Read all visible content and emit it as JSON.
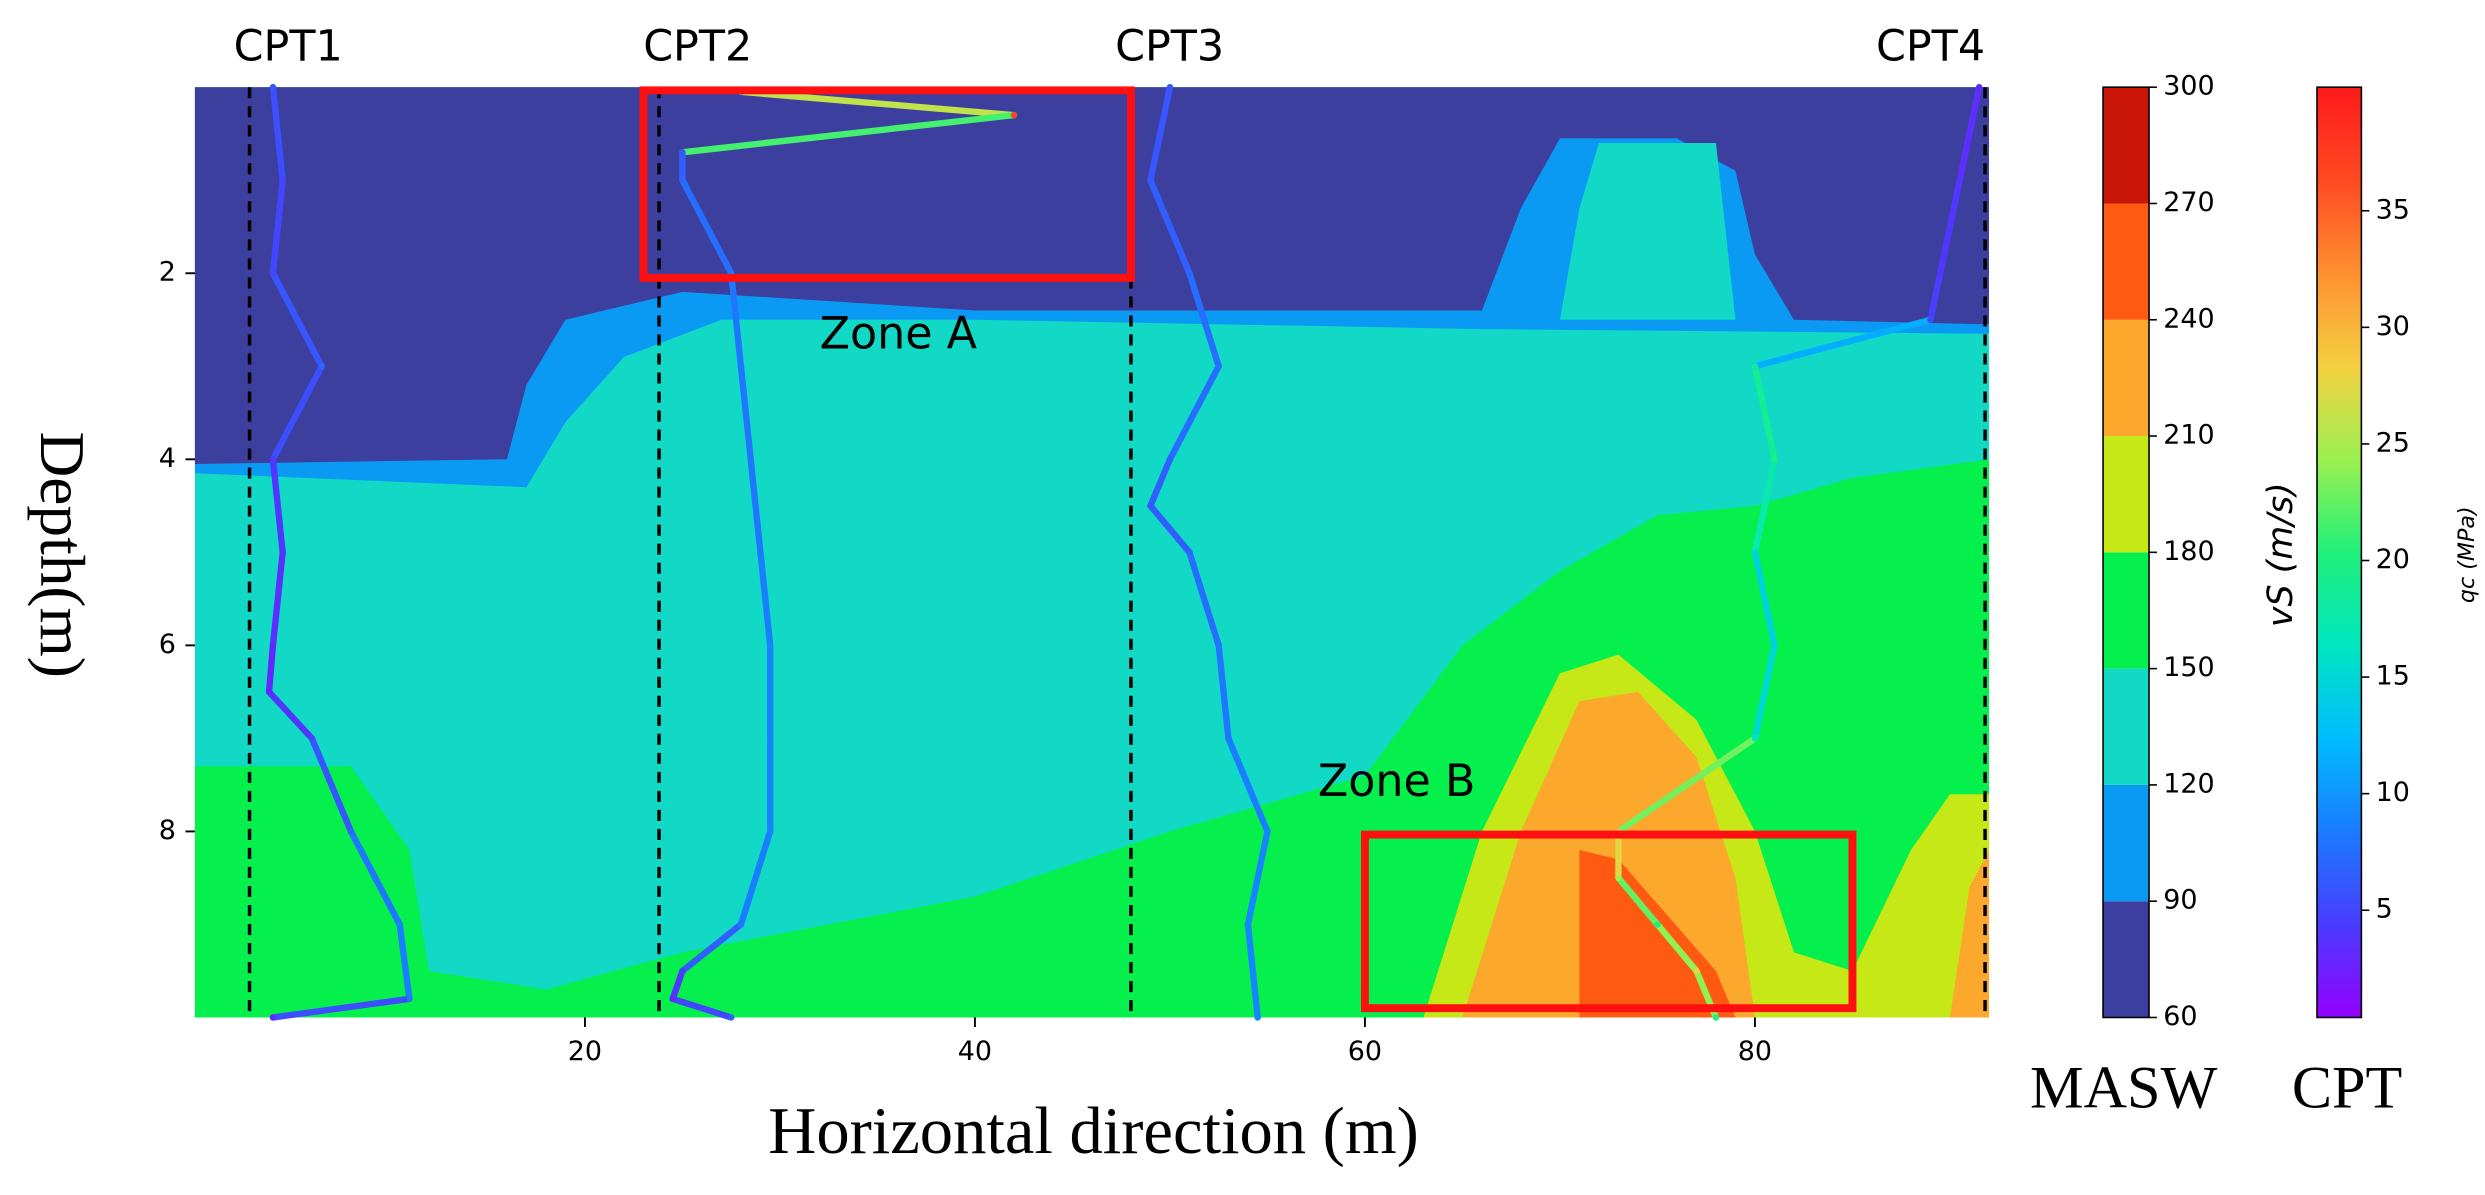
{
  "chart_data": {
    "type": "contour",
    "x_label": "Horizontal direction (m)",
    "y_label": "Depth(m)",
    "xlim": [
      0,
      92
    ],
    "ylim": [
      0,
      10
    ],
    "y_inverted": true,
    "xticks": [
      20,
      40,
      60,
      80
    ],
    "yticks": [
      2,
      4,
      6,
      8
    ],
    "masw": {
      "name": "MASW",
      "label": "vS (m/s)",
      "levels": [
        60,
        90,
        120,
        150,
        180,
        210,
        240,
        270,
        300
      ],
      "colors": [
        "#3c3f9e",
        "#0b9af3",
        "#12d8c6",
        "#05f04c",
        "#c6e817",
        "#fba82c",
        "#ff5a12",
        "#c81508"
      ]
    },
    "cpt_colorbar": {
      "name": "CPT",
      "label": "qc (MPa)",
      "lim": [
        0.4,
        40.3
      ],
      "ticks": [
        5,
        10,
        15,
        20,
        25,
        30,
        35
      ],
      "colors": [
        "#9400ff",
        "#4a3cff",
        "#1a7cff",
        "#00bcff",
        "#00e6c0",
        "#20f07a",
        "#9cf050",
        "#f4d040",
        "#ff9030",
        "#ff4a22",
        "#ff1a1a"
      ]
    },
    "background_level": 120,
    "regions": [
      {
        "level": 90,
        "x": [
          0,
          92,
          92,
          66,
          40,
          27,
          22,
          19,
          17,
          0
        ],
        "depth": [
          0,
          0,
          2.65,
          2.6,
          2.5,
          2.5,
          2.9,
          3.6,
          4.3,
          4.15
        ]
      },
      {
        "level": 60,
        "x": [
          0,
          92,
          92,
          82,
          80,
          79,
          76,
          70,
          68,
          66,
          40,
          25,
          19,
          17,
          16,
          0
        ],
        "depth": [
          0,
          0,
          2.55,
          2.5,
          1.8,
          0.9,
          0.55,
          0.55,
          1.3,
          2.4,
          2.4,
          2.2,
          2.5,
          3.2,
          4.0,
          4.05
        ]
      },
      {
        "level": 120,
        "x": [
          72,
          78,
          79,
          70,
          71
        ],
        "depth": [
          0.6,
          0.6,
          2.5,
          2.5,
          1.3
        ]
      },
      {
        "level": 150,
        "x": [
          0,
          0,
          8,
          11,
          12,
          18,
          25,
          40,
          50,
          60,
          65,
          70,
          75,
          80,
          85,
          92,
          92
        ],
        "depth": [
          10,
          7.3,
          7.3,
          8.2,
          9.5,
          9.7,
          9.3,
          8.7,
          8.0,
          7.4,
          6.0,
          5.2,
          4.6,
          4.5,
          4.2,
          4.0,
          10
        ]
      },
      {
        "level": 180,
        "x": [
          63,
          66,
          70,
          73,
          77,
          80,
          82,
          85,
          88,
          90,
          92,
          92
        ],
        "depth": [
          10,
          8.0,
          6.3,
          6.1,
          6.8,
          8.0,
          9.3,
          9.5,
          8.2,
          7.6,
          7.6,
          10
        ]
      },
      {
        "level": 210,
        "x": [
          65,
          68,
          71,
          74,
          77,
          79,
          80
        ],
        "depth": [
          10,
          8.0,
          6.6,
          6.5,
          7.2,
          8.5,
          10
        ]
      },
      {
        "level": 210,
        "x": [
          90,
          91,
          92,
          92
        ],
        "depth": [
          10,
          8.6,
          8.2,
          10
        ]
      },
      {
        "level": 240,
        "x": [
          71,
          71,
          73,
          78,
          79
        ],
        "depth": [
          10,
          8.2,
          8.3,
          9.5,
          10
        ]
      }
    ],
    "cpt_profiles": [
      {
        "name": "CPT1",
        "position": 2.8,
        "x": [
          4,
          4.5,
          4,
          6.5,
          4,
          4.5,
          4,
          3.8,
          6,
          8,
          10.5,
          11,
          4
        ],
        "depth": [
          0,
          1,
          2,
          3,
          4,
          5,
          6,
          6.5,
          7,
          8,
          9,
          9.8,
          10
        ],
        "qc": [
          6,
          5,
          5,
          7,
          4,
          4,
          3,
          3,
          5,
          7,
          9,
          8,
          3
        ]
      },
      {
        "name": "CPT2",
        "position": 23.8,
        "x": [
          28,
          42,
          25,
          25,
          27.5,
          28,
          28.5,
          29,
          29.5,
          29.5,
          29.5,
          28,
          25,
          24.5,
          27.5
        ],
        "depth": [
          0.05,
          0.3,
          0.7,
          1,
          2,
          3,
          4,
          5,
          6,
          7,
          8,
          9,
          9.5,
          9.8,
          10
        ],
        "qc": [
          15,
          37,
          6,
          7,
          8,
          8,
          8,
          8,
          9,
          9,
          9,
          8,
          5,
          3,
          7
        ]
      },
      {
        "name": "CPT3",
        "position": 48,
        "x": [
          50,
          49,
          51,
          52.5,
          50,
          49,
          51,
          52.5,
          53,
          55,
          54,
          54.5
        ],
        "depth": [
          0,
          1,
          2,
          3,
          4,
          4.5,
          5,
          6,
          7,
          8,
          9,
          10
        ],
        "qc": [
          6,
          6,
          7,
          8,
          7,
          6,
          7,
          8,
          8,
          9,
          9,
          9
        ]
      },
      {
        "name": "CPT4",
        "position": 91.8,
        "x": [
          91.5,
          90.5,
          89.5,
          89,
          80,
          81,
          80,
          81,
          80,
          73,
          73,
          75,
          77,
          78
        ],
        "depth": [
          0,
          1,
          2,
          2.5,
          3,
          4,
          5,
          6,
          7,
          8,
          8.5,
          9,
          9.5,
          10
        ],
        "qc": [
          3,
          4,
          4,
          5,
          18,
          20,
          15,
          14,
          16,
          30,
          25,
          20,
          28,
          20
        ]
      }
    ],
    "zones": [
      {
        "label": "Zone A",
        "x": [
          23,
          48
        ],
        "depth": [
          0,
          2.05
        ]
      },
      {
        "label": "Zone B",
        "x": [
          60,
          85
        ],
        "depth": [
          8,
          9.9
        ]
      }
    ]
  }
}
